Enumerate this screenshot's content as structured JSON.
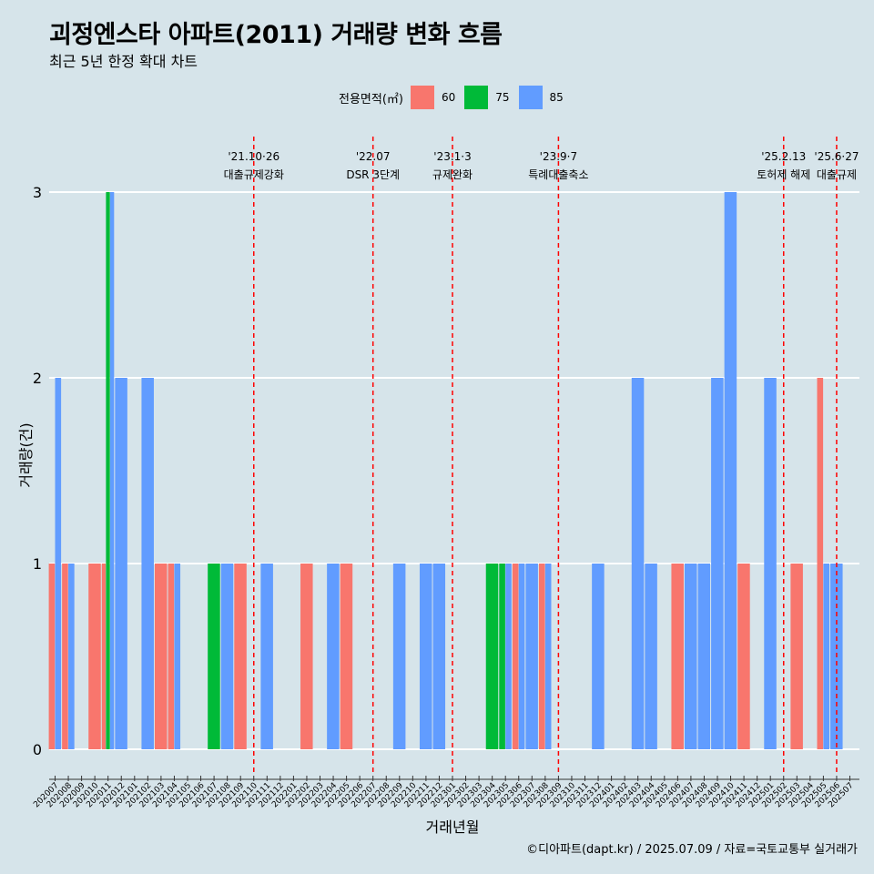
{
  "title": "괴정엔스타 아파트(2011) 거래량 변화 흐름",
  "subtitle": "최근 5년 한정 확대 차트",
  "caption": "©디아파트(dapt.kr) / 2025.07.09 / 자료=국토교통부 실거래가",
  "legend": {
    "title": "전용면적(㎡)",
    "items": [
      {
        "label": "60",
        "color": "#f8766d"
      },
      {
        "label": "75",
        "color": "#00ba38"
      },
      {
        "label": "85",
        "color": "#619cff"
      }
    ]
  },
  "chart_data": {
    "type": "bar",
    "stacked": false,
    "xlabel": "거래년월",
    "ylabel": "거래량(건)",
    "ylim": [
      0,
      3
    ],
    "yticks": [
      0,
      1,
      2,
      3
    ],
    "categories": [
      "202007",
      "202008",
      "202009",
      "202010",
      "202011",
      "202012",
      "202101",
      "202102",
      "202103",
      "202104",
      "202105",
      "202106",
      "202107",
      "202108",
      "202109",
      "202110",
      "202111",
      "202112",
      "202201",
      "202202",
      "202203",
      "202204",
      "202205",
      "202206",
      "202207",
      "202208",
      "202209",
      "202210",
      "202211",
      "202212",
      "202301",
      "202302",
      "202303",
      "202304",
      "202305",
      "202306",
      "202307",
      "202308",
      "202309",
      "202310",
      "202311",
      "202312",
      "202401",
      "202402",
      "202403",
      "202404",
      "202405",
      "202406",
      "202407",
      "202408",
      "202409",
      "202410",
      "202411",
      "202412",
      "202501",
      "202502",
      "202503",
      "202504",
      "202505",
      "202506",
      "202507"
    ],
    "bars": [
      {
        "month": "202007",
        "area": "60",
        "value": 1
      },
      {
        "month": "202007",
        "area": "85",
        "value": 2
      },
      {
        "month": "202008",
        "area": "60",
        "value": 1
      },
      {
        "month": "202008",
        "area": "85",
        "value": 1
      },
      {
        "month": "202010",
        "area": "60",
        "value": 1
      },
      {
        "month": "202011",
        "area": "60",
        "value": 1
      },
      {
        "month": "202011",
        "area": "75",
        "value": 3
      },
      {
        "month": "202011",
        "area": "85",
        "value": 3
      },
      {
        "month": "202012",
        "area": "85",
        "value": 2
      },
      {
        "month": "202102",
        "area": "85",
        "value": 2
      },
      {
        "month": "202103",
        "area": "60",
        "value": 1
      },
      {
        "month": "202104",
        "area": "60",
        "value": 1
      },
      {
        "month": "202104",
        "area": "85",
        "value": 1
      },
      {
        "month": "202107",
        "area": "75",
        "value": 1
      },
      {
        "month": "202108",
        "area": "85",
        "value": 1
      },
      {
        "month": "202109",
        "area": "60",
        "value": 1
      },
      {
        "month": "202111",
        "area": "85",
        "value": 1
      },
      {
        "month": "202202",
        "area": "60",
        "value": 1
      },
      {
        "month": "202204",
        "area": "85",
        "value": 1
      },
      {
        "month": "202205",
        "area": "60",
        "value": 1
      },
      {
        "month": "202209",
        "area": "85",
        "value": 1
      },
      {
        "month": "202211",
        "area": "85",
        "value": 1
      },
      {
        "month": "202212",
        "area": "85",
        "value": 1
      },
      {
        "month": "202304",
        "area": "75",
        "value": 1
      },
      {
        "month": "202305",
        "area": "75",
        "value": 1
      },
      {
        "month": "202305",
        "area": "85",
        "value": 1
      },
      {
        "month": "202306",
        "area": "60",
        "value": 1
      },
      {
        "month": "202306",
        "area": "85",
        "value": 1
      },
      {
        "month": "202307",
        "area": "85",
        "value": 1
      },
      {
        "month": "202308",
        "area": "60",
        "value": 1
      },
      {
        "month": "202308",
        "area": "85",
        "value": 1
      },
      {
        "month": "202312",
        "area": "85",
        "value": 1
      },
      {
        "month": "202403",
        "area": "85",
        "value": 2
      },
      {
        "month": "202404",
        "area": "85",
        "value": 1
      },
      {
        "month": "202406",
        "area": "60",
        "value": 1
      },
      {
        "month": "202407",
        "area": "85",
        "value": 1
      },
      {
        "month": "202408",
        "area": "85",
        "value": 1
      },
      {
        "month": "202409",
        "area": "85",
        "value": 2
      },
      {
        "month": "202410",
        "area": "85",
        "value": 3
      },
      {
        "month": "202411",
        "area": "60",
        "value": 1
      },
      {
        "month": "202501",
        "area": "85",
        "value": 2
      },
      {
        "month": "202503",
        "area": "60",
        "value": 1
      },
      {
        "month": "202505",
        "area": "60",
        "value": 2
      },
      {
        "month": "202505",
        "area": "85",
        "value": 1
      },
      {
        "month": "202506",
        "area": "85",
        "value": 1
      }
    ],
    "annotations": [
      {
        "month": "202110",
        "date": "'21.10·26",
        "text": "대출규제강화"
      },
      {
        "month": "202207",
        "date": "'22.07",
        "text": "DSR 3단계"
      },
      {
        "month": "202301",
        "date": "'23.1·3",
        "text": "규제완화"
      },
      {
        "month": "202309",
        "date": "'23.9·7",
        "text": "특례대출축소"
      },
      {
        "month": "202502",
        "date": "'25.2.13",
        "text": "토허제 해제"
      },
      {
        "month": "202506",
        "date": "'25.6·27",
        "text": "대출규제"
      }
    ]
  }
}
